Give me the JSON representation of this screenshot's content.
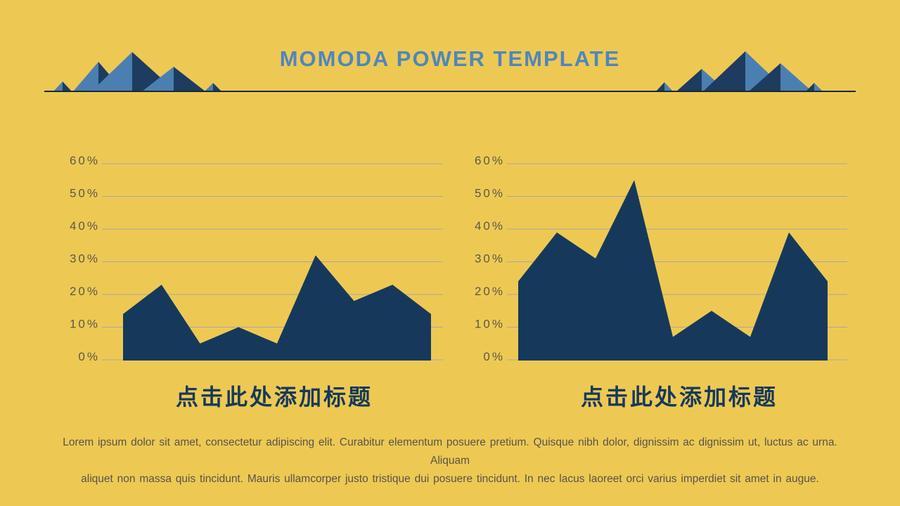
{
  "slide": {
    "title": "MOMODA POWER TEMPLATE",
    "colors": {
      "background": "#edc954",
      "navy": "#16395b",
      "mountain_light_blue": "#4c7fb1",
      "mountain_dark_navy": "#1d3c5f",
      "title_blue": "#4f86bd",
      "axis_label": "#5e5749",
      "gridline": "#aaa79e",
      "body_text": "#5a5348",
      "divider_line": "#1c2633"
    }
  },
  "chart_data": [
    {
      "type": "area",
      "title": "点击此处添加标题",
      "values": [
        14,
        23,
        5,
        10,
        5,
        32,
        18,
        23,
        14
      ],
      "ylim": [
        0,
        60
      ],
      "ytick_labels": [
        "60%",
        "50%",
        "40%",
        "30%",
        "20%",
        "10%",
        "0%"
      ],
      "ytick_values": [
        60,
        50,
        40,
        30,
        20,
        10,
        0
      ],
      "grid": true,
      "legend": "none",
      "xlabel": "",
      "ylabel": "",
      "fill_color": "#16395b"
    },
    {
      "type": "area",
      "title": "点击此处添加标题",
      "values": [
        24,
        39,
        31,
        55,
        7,
        15,
        7,
        39,
        24
      ],
      "ylim": [
        0,
        60
      ],
      "ytick_labels": [
        "60%",
        "50%",
        "40%",
        "30%",
        "20%",
        "10%",
        "0%"
      ],
      "ytick_values": [
        60,
        50,
        40,
        30,
        20,
        10,
        0
      ],
      "grid": true,
      "legend": "none",
      "xlabel": "",
      "ylabel": "",
      "fill_color": "#16395b"
    }
  ],
  "body": {
    "lines": [
      "Lorem ipsum dolor sit amet, consectetur adipiscing elit. Curabitur elementum posuere pretium. Quisque nibh dolor, dignissim ac dignissim ut, luctus ac urna. Aliquam",
      "aliquet non massa quis tincidunt. Mauris ullamcorper justo tristique dui posuere tincidunt. In nec lacus laoreet orci varius imperdiet sit amet in augue."
    ]
  }
}
